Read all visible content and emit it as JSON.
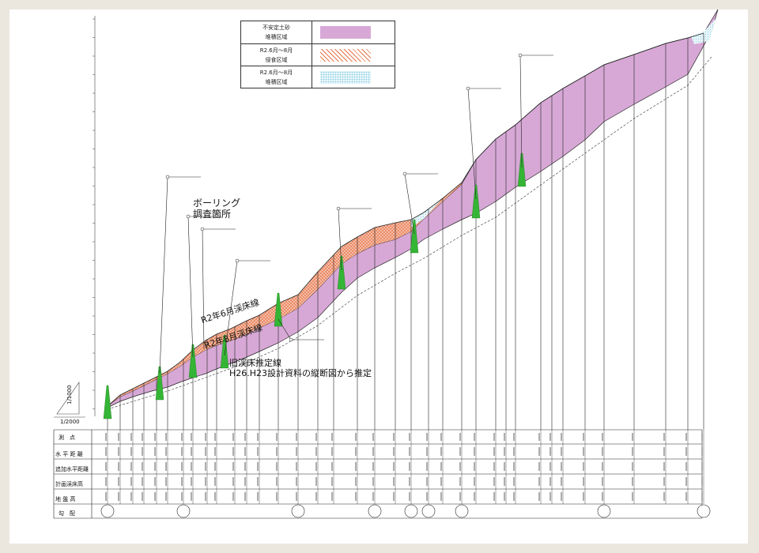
{
  "legend": {
    "items": [
      {
        "line1": "不安定土砂",
        "line2": "堆積区域",
        "color": "#d7a8d6",
        "pattern": "solid"
      },
      {
        "line1": "R2.6月～8月",
        "line2": "侵食区域",
        "color": "#e8764a",
        "pattern": "cross"
      },
      {
        "line1": "R2.6月～8月",
        "line2": "堆積区域",
        "color": "#8fd0e6",
        "pattern": "dots"
      }
    ]
  },
  "annotations": {
    "boring": {
      "line1": "ボーリング",
      "line2": "調査箇所"
    },
    "bed_june": "R2年6月渓床線",
    "bed_aug": "R2年8月渓床線",
    "old_bed": {
      "line1": "旧渓床推定線",
      "line2": "H26.H23設計資料の縦断図から推定"
    }
  },
  "scale": {
    "horizontal": "1/2000",
    "vertical": "1/1000"
  },
  "table": {
    "row_labels": [
      "測　点",
      "水 平 距 離",
      "追加水平距離",
      "計画渓床高",
      "地 盤 高",
      "勾　配"
    ]
  },
  "colors": {
    "deposit": "#d7a8d6",
    "erosion": "#e8764a",
    "accumulation": "#8fd0e6",
    "dam": "#35b535",
    "line": "#222222"
  }
}
